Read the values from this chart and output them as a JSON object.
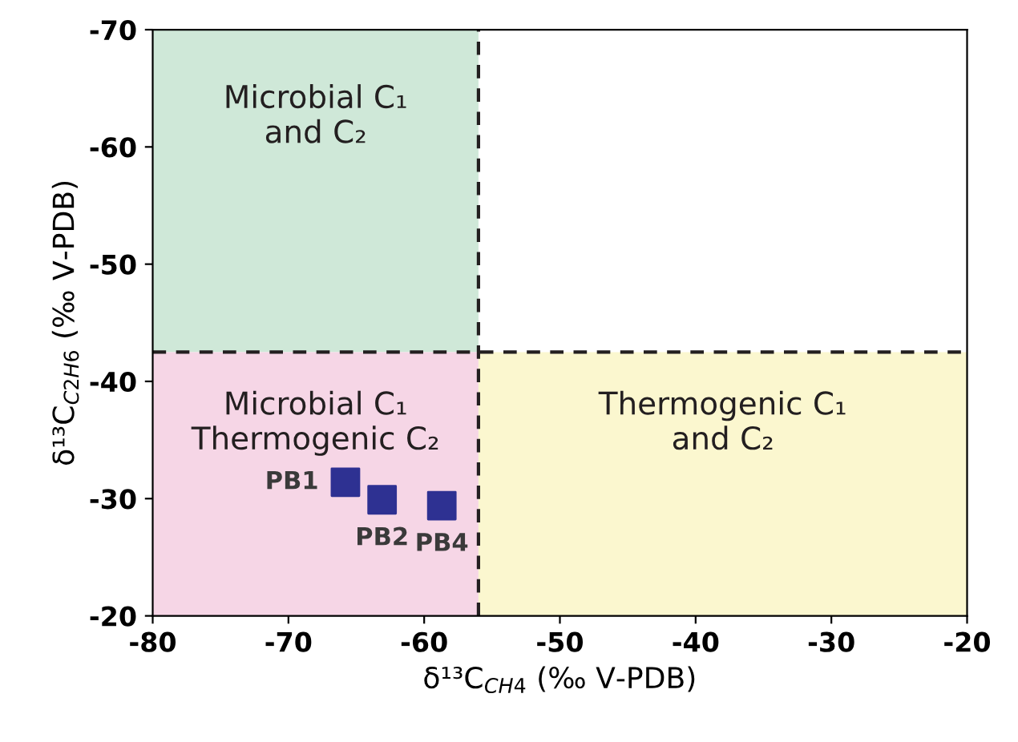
{
  "chart_data": {
    "type": "scatter",
    "xlabel": "δ¹³C$_{CH4}$ (‰ V-PDB)",
    "ylabel": "δ¹³C$_{C2H6}$ (‰ V-PDB)",
    "x": [
      -65.8,
      -63.1,
      -58.7
    ],
    "values": [
      -31.4,
      -29.9,
      -29.4
    ],
    "color": "#2e3192",
    "marker": "square",
    "xlim": [
      -80,
      -20
    ],
    "ylim": [
      -20,
      -70
    ],
    "xticks": [
      -80,
      -70,
      -60,
      -50,
      -40,
      -30,
      -20
    ],
    "yticks": [
      -70,
      -60,
      -50,
      -40,
      -30,
      -20
    ],
    "grid": false,
    "ref_lines": [
      {
        "axis": "x",
        "value": -56,
        "line_style": "dashed",
        "color": "#231f20"
      },
      {
        "axis": "y",
        "value": -42.5,
        "line_style": "dashed",
        "color": "#231f20"
      }
    ],
    "annotations": [
      "Microbial C₁\nand C₂",
      "Microbial C₁\nThermogenic C₂",
      "Thermogenic C₁\nand C₂",
      {
        "text": "PB1",
        "x": -65.8,
        "y": -31.4
      },
      {
        "text": "PB2",
        "x": -63.1,
        "y": -29.9
      },
      {
        "text": "PB4",
        "x": -58.7,
        "y": -29.4
      }
    ]
  }
}
